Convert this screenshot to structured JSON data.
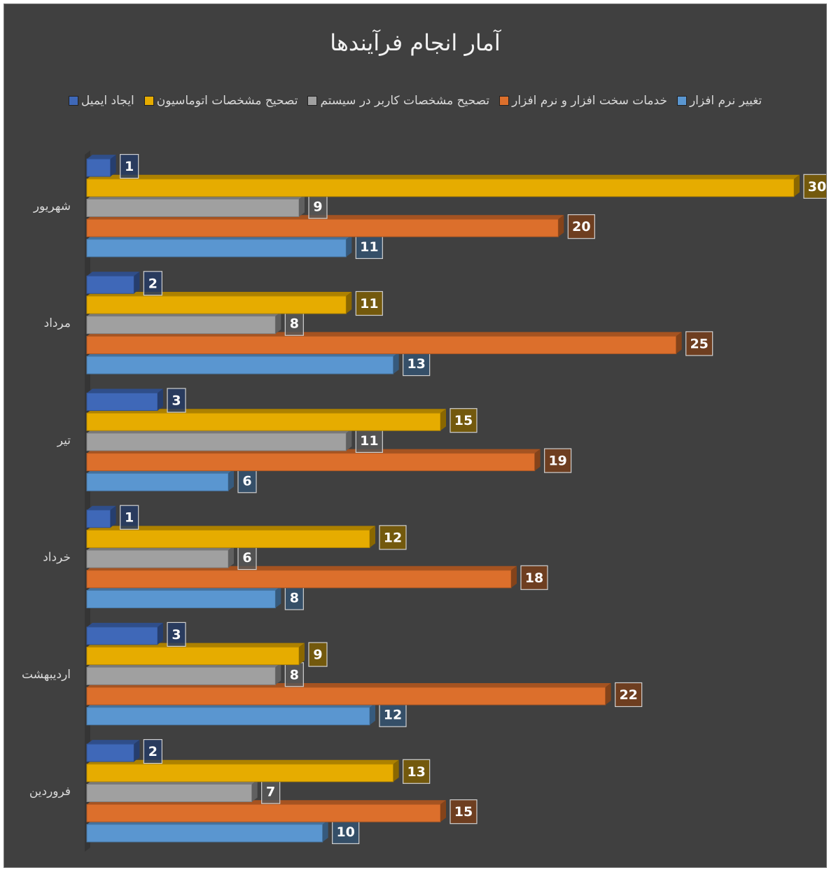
{
  "chart_data": {
    "type": "bar",
    "orientation": "horizontal",
    "title": "آمار انجام فرآیندها",
    "categories": [
      "فروردین",
      "اردیبهشت",
      "خرداد",
      "تیر",
      "مرداد",
      "شهریور"
    ],
    "series": [
      {
        "name": "تغییر نرم افزار",
        "color": "#5a96d0",
        "values": [
          10,
          12,
          8,
          6,
          13,
          11
        ]
      },
      {
        "name": "خدمات سخت افزار و نرم افزار",
        "color": "#dc6f2c",
        "values": [
          15,
          22,
          18,
          19,
          25,
          20
        ]
      },
      {
        "name": "تصحیح مشخصات کاربر در سیستم",
        "color": "#a0a0a0",
        "values": [
          7,
          8,
          6,
          11,
          8,
          9
        ]
      },
      {
        "name": "تصحیح مشخصات اتوماسیون",
        "color": "#e6ac00",
        "values": [
          13,
          9,
          12,
          15,
          11,
          30
        ]
      },
      {
        "name": "ایجاد ایمیل",
        "color": "#3f68b8",
        "values": [
          2,
          3,
          1,
          3,
          2,
          1
        ]
      }
    ],
    "legend": "top",
    "data_labels": true
  }
}
